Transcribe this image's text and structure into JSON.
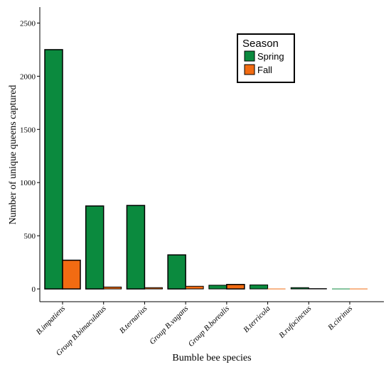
{
  "chart_data": {
    "type": "bar",
    "categories": [
      "B.impatiens",
      "Group B.bimaculatus",
      "B.ternarius",
      "Group B.vagans",
      "Group B.borealis",
      "B.terricola",
      "B.rufocinctus",
      "B.citrinus"
    ],
    "series": [
      {
        "name": "Spring",
        "color": "#0b8a3e",
        "values": [
          2250,
          780,
          785,
          320,
          35,
          38,
          12,
          0
        ]
      },
      {
        "name": "Fall",
        "color": "#f26b12",
        "values": [
          270,
          18,
          12,
          25,
          42,
          0,
          3,
          0
        ]
      }
    ],
    "xlabel": "Bumble bee species",
    "ylabel": "Number of unique queens captured",
    "ylim": [
      -120,
      2650
    ],
    "yticks": [
      0,
      500,
      1000,
      1500,
      2000,
      2500
    ],
    "legend": {
      "title": "Season",
      "position": "top-right"
    },
    "grid": false
  }
}
